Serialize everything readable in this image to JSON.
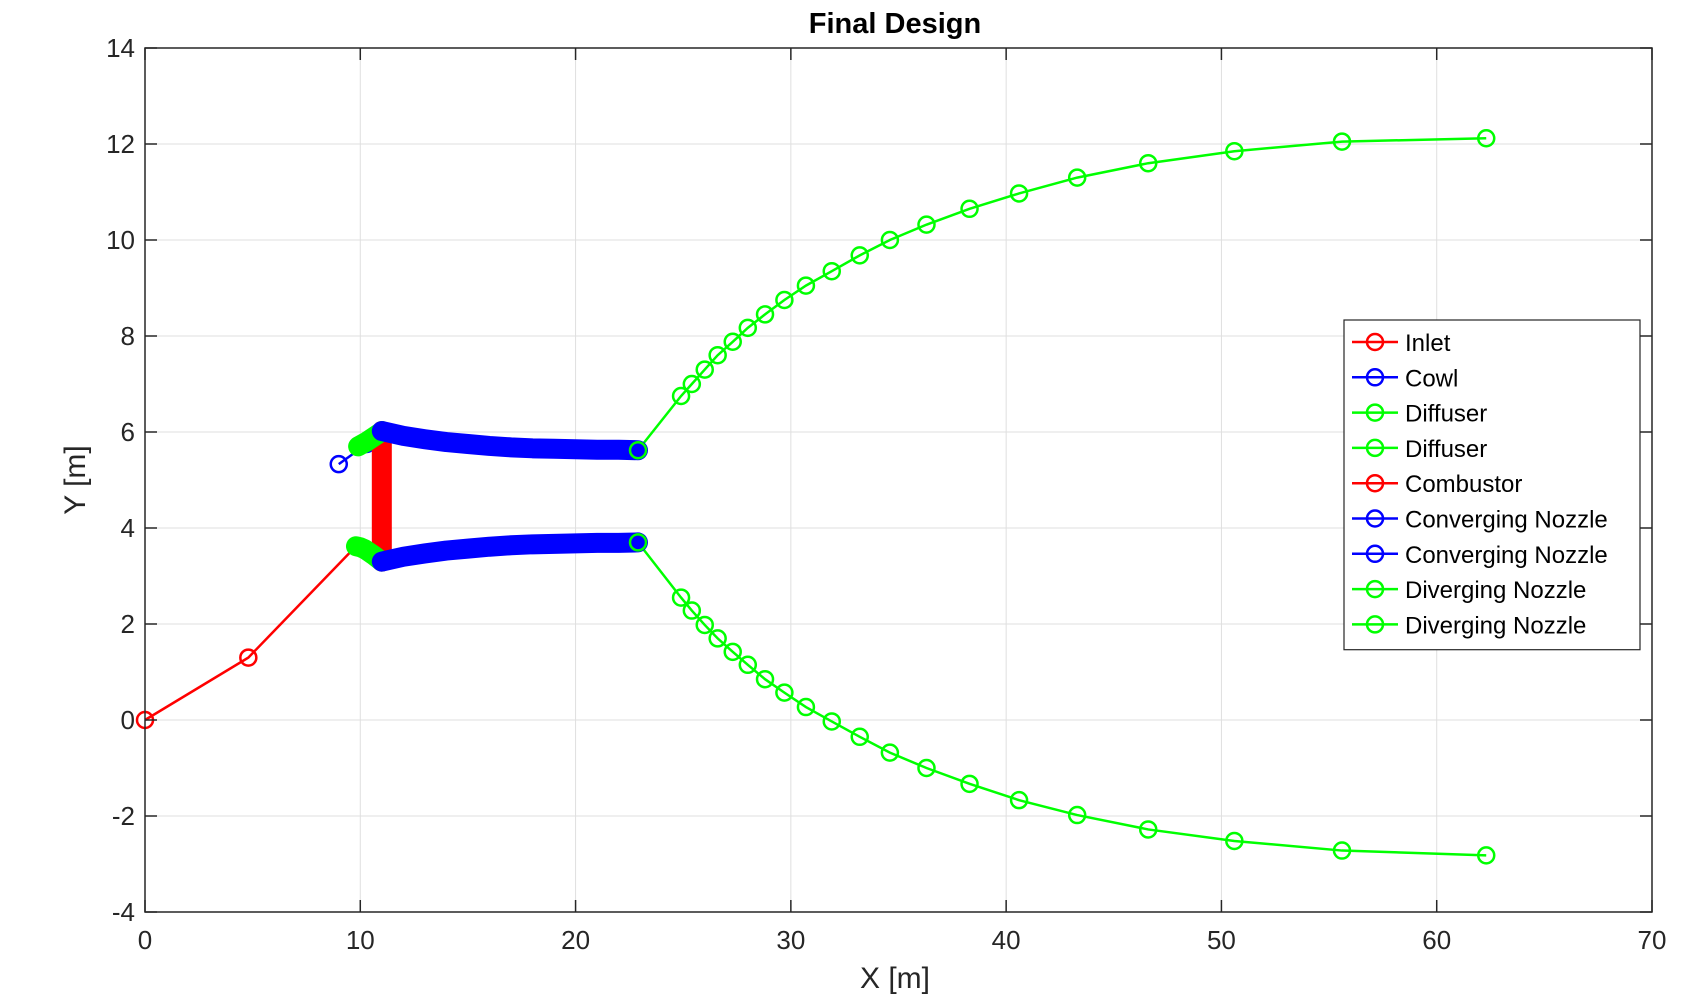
{
  "chart_data": {
    "type": "line",
    "title": "Final Design",
    "xlabel": "X [m]",
    "ylabel": "Y [m]",
    "xlim": [
      0,
      70
    ],
    "ylim": [
      -4,
      14
    ],
    "xticks": [
      0,
      10,
      20,
      30,
      40,
      50,
      60,
      70
    ],
    "yticks": [
      -4,
      -2,
      0,
      2,
      4,
      6,
      8,
      10,
      12,
      14
    ],
    "grid": true,
    "legend_position": "right",
    "series": [
      {
        "name": "Inlet",
        "color": "#ff0000",
        "marker": "circle",
        "dense": false,
        "x": [
          0,
          4.8,
          9.8
        ],
        "y": [
          0,
          1.3,
          3.62
        ]
      },
      {
        "name": "Cowl",
        "color": "#0000ff",
        "marker": "circle",
        "dense": false,
        "x": [
          9.0,
          10.3
        ],
        "y": [
          5.33,
          5.75
        ]
      },
      {
        "name": "Diffuser",
        "color": "#00ff00",
        "marker": "circle",
        "dense": true,
        "x": [
          9.9,
          10.1,
          10.3,
          10.5,
          10.7,
          10.9,
          11.0
        ],
        "y": [
          5.7,
          5.75,
          5.8,
          5.86,
          5.92,
          5.98,
          6.02
        ]
      },
      {
        "name": "Diffuser",
        "color": "#00ff00",
        "marker": "circle",
        "dense": true,
        "x": [
          9.8,
          10.0,
          10.2,
          10.4,
          10.6,
          10.8,
          11.0
        ],
        "y": [
          3.62,
          3.6,
          3.56,
          3.5,
          3.44,
          3.37,
          3.3
        ]
      },
      {
        "name": "Combustor",
        "color": "#ff0000",
        "marker": "circle",
        "dense": true,
        "x": [
          11.0,
          11.0
        ],
        "y": [
          6.02,
          3.3
        ]
      },
      {
        "name": "Converging Nozzle",
        "color": "#0000ff",
        "marker": "circle",
        "dense": true,
        "x": [
          11.0,
          12.0,
          13.0,
          14.0,
          15.0,
          16.0,
          17.0,
          18.0,
          19.0,
          20.0,
          21.0,
          22.0,
          22.9
        ],
        "y": [
          6.02,
          5.92,
          5.85,
          5.79,
          5.75,
          5.71,
          5.68,
          5.66,
          5.65,
          5.64,
          5.63,
          5.63,
          5.62
        ]
      },
      {
        "name": "Converging Nozzle",
        "color": "#0000ff",
        "marker": "circle",
        "dense": true,
        "x": [
          11.0,
          12.0,
          13.0,
          14.0,
          15.0,
          16.0,
          17.0,
          18.0,
          19.0,
          20.0,
          21.0,
          22.0,
          22.9
        ],
        "y": [
          3.3,
          3.4,
          3.47,
          3.53,
          3.57,
          3.61,
          3.64,
          3.66,
          3.67,
          3.68,
          3.69,
          3.69,
          3.7
        ]
      },
      {
        "name": "Diverging Nozzle",
        "color": "#00ff00",
        "marker": "circle",
        "dense": false,
        "x": [
          22.9,
          24.9,
          25.4,
          26.0,
          26.6,
          27.3,
          28.0,
          28.8,
          29.7,
          30.7,
          31.9,
          33.2,
          34.6,
          36.3,
          38.3,
          40.6,
          43.3,
          46.6,
          50.6,
          55.6,
          62.3
        ],
        "y": [
          5.62,
          6.75,
          7.0,
          7.3,
          7.6,
          7.88,
          8.17,
          8.45,
          8.75,
          9.05,
          9.35,
          9.68,
          10.0,
          10.32,
          10.65,
          10.97,
          11.3,
          11.6,
          11.85,
          12.05,
          12.12
        ]
      },
      {
        "name": "Diverging Nozzle",
        "color": "#00ff00",
        "marker": "circle",
        "dense": false,
        "x": [
          22.9,
          24.9,
          25.4,
          26.0,
          26.6,
          27.3,
          28.0,
          28.8,
          29.7,
          30.7,
          31.9,
          33.2,
          34.6,
          36.3,
          38.3,
          40.6,
          43.3,
          46.6,
          50.6,
          55.6,
          62.3
        ],
        "y": [
          3.7,
          2.55,
          2.28,
          1.98,
          1.7,
          1.42,
          1.15,
          0.85,
          0.57,
          0.27,
          -0.03,
          -0.35,
          -0.68,
          -1.0,
          -1.33,
          -1.67,
          -1.98,
          -2.28,
          -2.52,
          -2.72,
          -2.82
        ]
      }
    ]
  }
}
